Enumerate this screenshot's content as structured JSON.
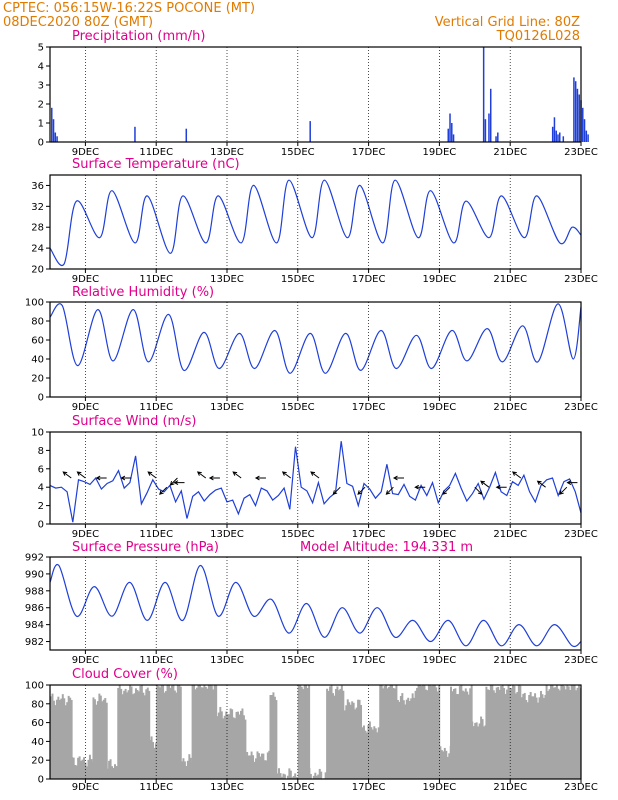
{
  "header": {
    "line1": "CPTEC:   056:15W-16:22S   POCONE (MT)",
    "line2": "08DEC2020 80Z (GMT)",
    "right1": "Vertical Grid Line: 80Z",
    "right2": "TQ0126L028"
  },
  "x_axis": {
    "ticks": [
      "9DEC",
      "11DEC",
      "13DEC",
      "15DEC",
      "17DEC",
      "19DEC",
      "21DEC",
      "23DEC"
    ]
  },
  "colors": {
    "header": "#e07b00",
    "panel_title": "#e0008c",
    "series": "#1f3fd8",
    "cloud": "#a6a6a6",
    "wind_arrow": "#000000"
  },
  "chart_data": [
    {
      "type": "bar",
      "title": "Precipitation (mm/h)",
      "ylim": [
        0,
        5
      ],
      "yticks": [
        0,
        1,
        2,
        3,
        4,
        5
      ],
      "x_unit": "day_offset_from_08DEC2020_00Z",
      "bars": [
        {
          "x": 0.05,
          "y": 1.8
        },
        {
          "x": 0.1,
          "y": 1.2
        },
        {
          "x": 0.15,
          "y": 0.5
        },
        {
          "x": 0.2,
          "y": 0.3
        },
        {
          "x": 2.4,
          "y": 0.8
        },
        {
          "x": 3.85,
          "y": 0.7
        },
        {
          "x": 7.35,
          "y": 1.1
        },
        {
          "x": 11.25,
          "y": 0.7
        },
        {
          "x": 11.3,
          "y": 1.5
        },
        {
          "x": 11.35,
          "y": 1.0
        },
        {
          "x": 11.4,
          "y": 0.4
        },
        {
          "x": 12.25,
          "y": 5.0
        },
        {
          "x": 12.3,
          "y": 1.2
        },
        {
          "x": 12.4,
          "y": 1.5
        },
        {
          "x": 12.45,
          "y": 2.8
        },
        {
          "x": 12.6,
          "y": 0.3
        },
        {
          "x": 12.65,
          "y": 0.5
        },
        {
          "x": 14.2,
          "y": 0.8
        },
        {
          "x": 14.25,
          "y": 1.3
        },
        {
          "x": 14.3,
          "y": 0.6
        },
        {
          "x": 14.35,
          "y": 0.4
        },
        {
          "x": 14.4,
          "y": 0.5
        },
        {
          "x": 14.5,
          "y": 0.3
        },
        {
          "x": 14.8,
          "y": 3.4
        },
        {
          "x": 14.85,
          "y": 3.2
        },
        {
          "x": 14.9,
          "y": 2.8
        },
        {
          "x": 14.95,
          "y": 2.5
        },
        {
          "x": 15.0,
          "y": 2.2
        },
        {
          "x": 15.05,
          "y": 1.8
        },
        {
          "x": 15.1,
          "y": 1.2
        },
        {
          "x": 15.15,
          "y": 0.6
        },
        {
          "x": 15.2,
          "y": 0.4
        }
      ]
    },
    {
      "type": "line",
      "title": "Surface Temperature (nC)",
      "ylim": [
        20,
        38
      ],
      "yticks": [
        20,
        24,
        28,
        32,
        36
      ],
      "peaks": [
        33,
        35,
        34,
        34,
        34,
        36,
        37,
        37,
        36,
        37,
        35,
        33,
        34,
        34,
        28
      ],
      "troughs": [
        21,
        26,
        25,
        23,
        25,
        25,
        25,
        26,
        26,
        25,
        26,
        25,
        26,
        26,
        25,
        26
      ],
      "end_value": 26.5
    },
    {
      "type": "line",
      "title": "Relative Humidity (%)",
      "ylim": [
        0,
        100
      ],
      "yticks": [
        0,
        20,
        40,
        60,
        80,
        100
      ],
      "troughs": [
        33,
        38,
        37,
        28,
        30,
        30,
        25,
        25,
        28,
        30,
        30,
        38,
        37,
        37,
        40,
        65
      ],
      "peaks": [
        96,
        92,
        92,
        87,
        68,
        67,
        70,
        67,
        67,
        70,
        65,
        70,
        72,
        75,
        98,
        95
      ]
    },
    {
      "type": "line",
      "title": "Surface Wind (m/s)",
      "ylim": [
        0,
        10
      ],
      "yticks": [
        0,
        2,
        4,
        6,
        8,
        10
      ],
      "values": [
        4.2,
        3.9,
        4.0,
        3.5,
        0.2,
        4.8,
        4.6,
        4.3,
        5.0,
        3.8,
        4.4,
        4.7,
        5.8,
        3.9,
        4.5,
        7.4,
        2.2,
        3.4,
        4.8,
        3.8,
        3.5,
        4.2,
        2.4,
        3.6,
        0.6,
        3.0,
        3.5,
        2.5,
        3.2,
        3.7,
        3.9,
        2.4,
        2.6,
        1.1,
        2.8,
        3.2,
        2.0,
        3.9,
        3.6,
        2.6,
        3.1,
        3.9,
        1.6,
        8.4,
        4.0,
        3.6,
        2.3,
        4.5,
        2.2,
        2.9,
        3.4,
        9.0,
        4.4,
        4.1,
        2.0,
        4.4,
        3.8,
        2.8,
        3.5,
        6.5,
        3.3,
        3.2,
        4.3,
        3.0,
        2.6,
        4.2,
        3.1,
        4.5,
        2.3,
        3.6,
        4.2,
        5.5,
        3.9,
        2.5,
        3.3,
        4.4,
        2.7,
        4.0,
        5.6,
        3.5,
        3.1,
        4.6,
        4.2,
        5.3,
        3.5,
        2.4,
        4.2,
        4.8,
        5.0,
        3.1,
        4.6,
        4.9,
        3.5,
        1.2
      ],
      "arrows": [
        {
          "x": 0.6,
          "y": 5.0,
          "dir": "up-left"
        },
        {
          "x": 1.0,
          "y": 5.0,
          "dir": "up-left"
        },
        {
          "x": 1.6,
          "y": 5.0,
          "dir": "left"
        },
        {
          "x": 2.3,
          "y": 5.0,
          "dir": "left"
        },
        {
          "x": 3.0,
          "y": 5.0,
          "dir": "up-left"
        },
        {
          "x": 3.3,
          "y": 4.0,
          "dir": "down-left"
        },
        {
          "x": 3.6,
          "y": 5.0,
          "dir": "down-left"
        },
        {
          "x": 3.8,
          "y": 4.5,
          "dir": "left"
        },
        {
          "x": 4.4,
          "y": 5.0,
          "dir": "up-left"
        },
        {
          "x": 4.8,
          "y": 5.0,
          "dir": "left"
        },
        {
          "x": 5.4,
          "y": 5.0,
          "dir": "up-left"
        },
        {
          "x": 6.1,
          "y": 5.0,
          "dir": "left"
        },
        {
          "x": 6.8,
          "y": 5.0,
          "dir": "up-left"
        },
        {
          "x": 7.6,
          "y": 5.0,
          "dir": "up-left"
        },
        {
          "x": 8.2,
          "y": 4.0,
          "dir": "down-left"
        },
        {
          "x": 8.9,
          "y": 4.0,
          "dir": "down-left"
        },
        {
          "x": 9.7,
          "y": 4.0,
          "dir": "down-left"
        },
        {
          "x": 10.0,
          "y": 5.0,
          "dir": "left"
        },
        {
          "x": 10.6,
          "y": 4.0,
          "dir": "left"
        },
        {
          "x": 11.3,
          "y": 4.0,
          "dir": "down-left"
        },
        {
          "x": 12.0,
          "y": 4.0,
          "dir": "down-right"
        },
        {
          "x": 12.4,
          "y": 4.0,
          "dir": "up-left"
        },
        {
          "x": 12.9,
          "y": 4.0,
          "dir": "left"
        },
        {
          "x": 13.3,
          "y": 5.0,
          "dir": "up-left"
        },
        {
          "x": 14.0,
          "y": 4.0,
          "dir": "up-left"
        },
        {
          "x": 14.6,
          "y": 4.0,
          "dir": "down-left"
        },
        {
          "x": 14.9,
          "y": 4.5,
          "dir": "left"
        }
      ]
    },
    {
      "type": "line",
      "title": "Surface Pressure (hPa)",
      "annotation": "Model Altitude: 194.331 m",
      "ylim": [
        981,
        992
      ],
      "yticks": [
        982,
        984,
        986,
        988,
        990,
        992
      ],
      "peaks": [
        991,
        988.5,
        989,
        989,
        991,
        989,
        987,
        986.5,
        986,
        986,
        984.5,
        984.5,
        984.5,
        984,
        984,
        983.5
      ],
      "troughs": [
        985,
        985,
        984.5,
        984.5,
        985,
        985,
        983,
        982.5,
        983,
        982.5,
        982,
        981.5,
        981.5,
        981.5,
        981.5,
        982
      ]
    },
    {
      "type": "bar",
      "title": "Cloud Cover (%)",
      "ylim": [
        0,
        100
      ],
      "yticks": [
        0,
        20,
        40,
        60,
        80,
        100
      ],
      "segments": [
        {
          "from": 0.0,
          "to": 0.6,
          "level": 85
        },
        {
          "from": 0.6,
          "to": 1.2,
          "level": 20
        },
        {
          "from": 1.2,
          "to": 1.6,
          "level": 85
        },
        {
          "from": 1.6,
          "to": 1.9,
          "level": 15
        },
        {
          "from": 1.9,
          "to": 2.8,
          "level": 95
        },
        {
          "from": 2.8,
          "to": 3.0,
          "level": 40
        },
        {
          "from": 3.0,
          "to": 3.7,
          "level": 98
        },
        {
          "from": 3.7,
          "to": 4.0,
          "level": 20
        },
        {
          "from": 4.0,
          "to": 4.7,
          "level": 100
        },
        {
          "from": 4.7,
          "to": 5.5,
          "level": 70
        },
        {
          "from": 5.5,
          "to": 6.2,
          "level": 25
        },
        {
          "from": 6.2,
          "to": 6.4,
          "level": 90
        },
        {
          "from": 6.4,
          "to": 7.0,
          "level": 5
        },
        {
          "from": 7.0,
          "to": 7.3,
          "level": 100
        },
        {
          "from": 7.3,
          "to": 7.8,
          "level": 5
        },
        {
          "from": 7.8,
          "to": 8.3,
          "level": 95
        },
        {
          "from": 8.3,
          "to": 8.8,
          "level": 80
        },
        {
          "from": 8.8,
          "to": 9.3,
          "level": 55
        },
        {
          "from": 9.3,
          "to": 9.8,
          "level": 100
        },
        {
          "from": 9.8,
          "to": 10.3,
          "level": 85
        },
        {
          "from": 10.3,
          "to": 11.0,
          "level": 100
        },
        {
          "from": 11.0,
          "to": 11.3,
          "level": 30
        },
        {
          "from": 11.3,
          "to": 11.9,
          "level": 95
        },
        {
          "from": 11.9,
          "to": 12.3,
          "level": 60
        },
        {
          "from": 12.3,
          "to": 13.3,
          "level": 97
        },
        {
          "from": 13.3,
          "to": 14.0,
          "level": 88
        },
        {
          "from": 14.0,
          "to": 15.0,
          "level": 99
        }
      ]
    }
  ]
}
